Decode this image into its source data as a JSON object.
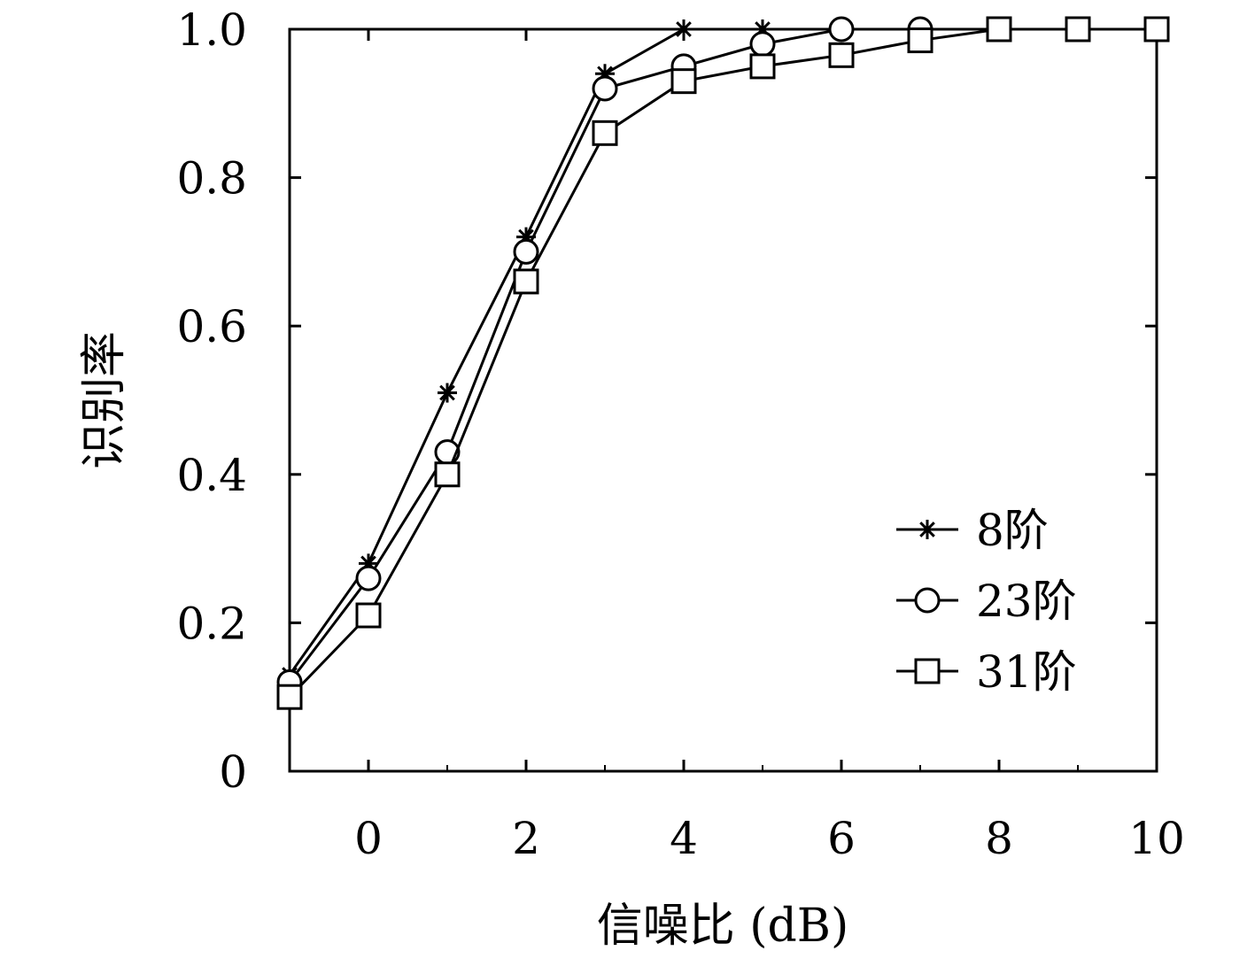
{
  "chart_data": {
    "type": "line",
    "title": "",
    "xlabel": "信噪比 (dB)",
    "ylabel": "识别率",
    "xlim": [
      -1,
      10
    ],
    "ylim": [
      0,
      1.0
    ],
    "x_ticks": [
      0,
      2,
      4,
      6,
      8,
      10
    ],
    "x_tick_labels": [
      "0",
      "2",
      "4",
      "6",
      "8",
      "10"
    ],
    "y_ticks": [
      0,
      0.2,
      0.4,
      0.6,
      0.8,
      1.0
    ],
    "y_tick_labels": [
      "0",
      "0.2",
      "0.4",
      "0.6",
      "0.8",
      "1.0"
    ],
    "grid": false,
    "legend_position": "bottom-right",
    "series": [
      {
        "name": "8阶",
        "marker": "star",
        "x": [
          -1,
          0,
          1,
          2,
          3,
          4,
          5,
          6,
          7,
          8,
          9,
          10
        ],
        "y": [
          0.13,
          0.28,
          0.51,
          0.72,
          0.94,
          1.0,
          1.0,
          1.0,
          1.0,
          1.0,
          1.0,
          1.0
        ]
      },
      {
        "name": "23阶",
        "marker": "circle",
        "x": [
          -1,
          0,
          1,
          2,
          3,
          4,
          5,
          6,
          7,
          8,
          9,
          10
        ],
        "y": [
          0.12,
          0.26,
          0.43,
          0.7,
          0.92,
          0.95,
          0.98,
          1.0,
          1.0,
          1.0,
          1.0,
          1.0
        ]
      },
      {
        "name": "31阶",
        "marker": "square",
        "x": [
          -1,
          0,
          1,
          2,
          3,
          4,
          5,
          6,
          7,
          8,
          9,
          10
        ],
        "y": [
          0.1,
          0.21,
          0.4,
          0.66,
          0.86,
          0.93,
          0.95,
          0.965,
          0.985,
          1.0,
          1.0,
          1.0
        ]
      }
    ]
  }
}
